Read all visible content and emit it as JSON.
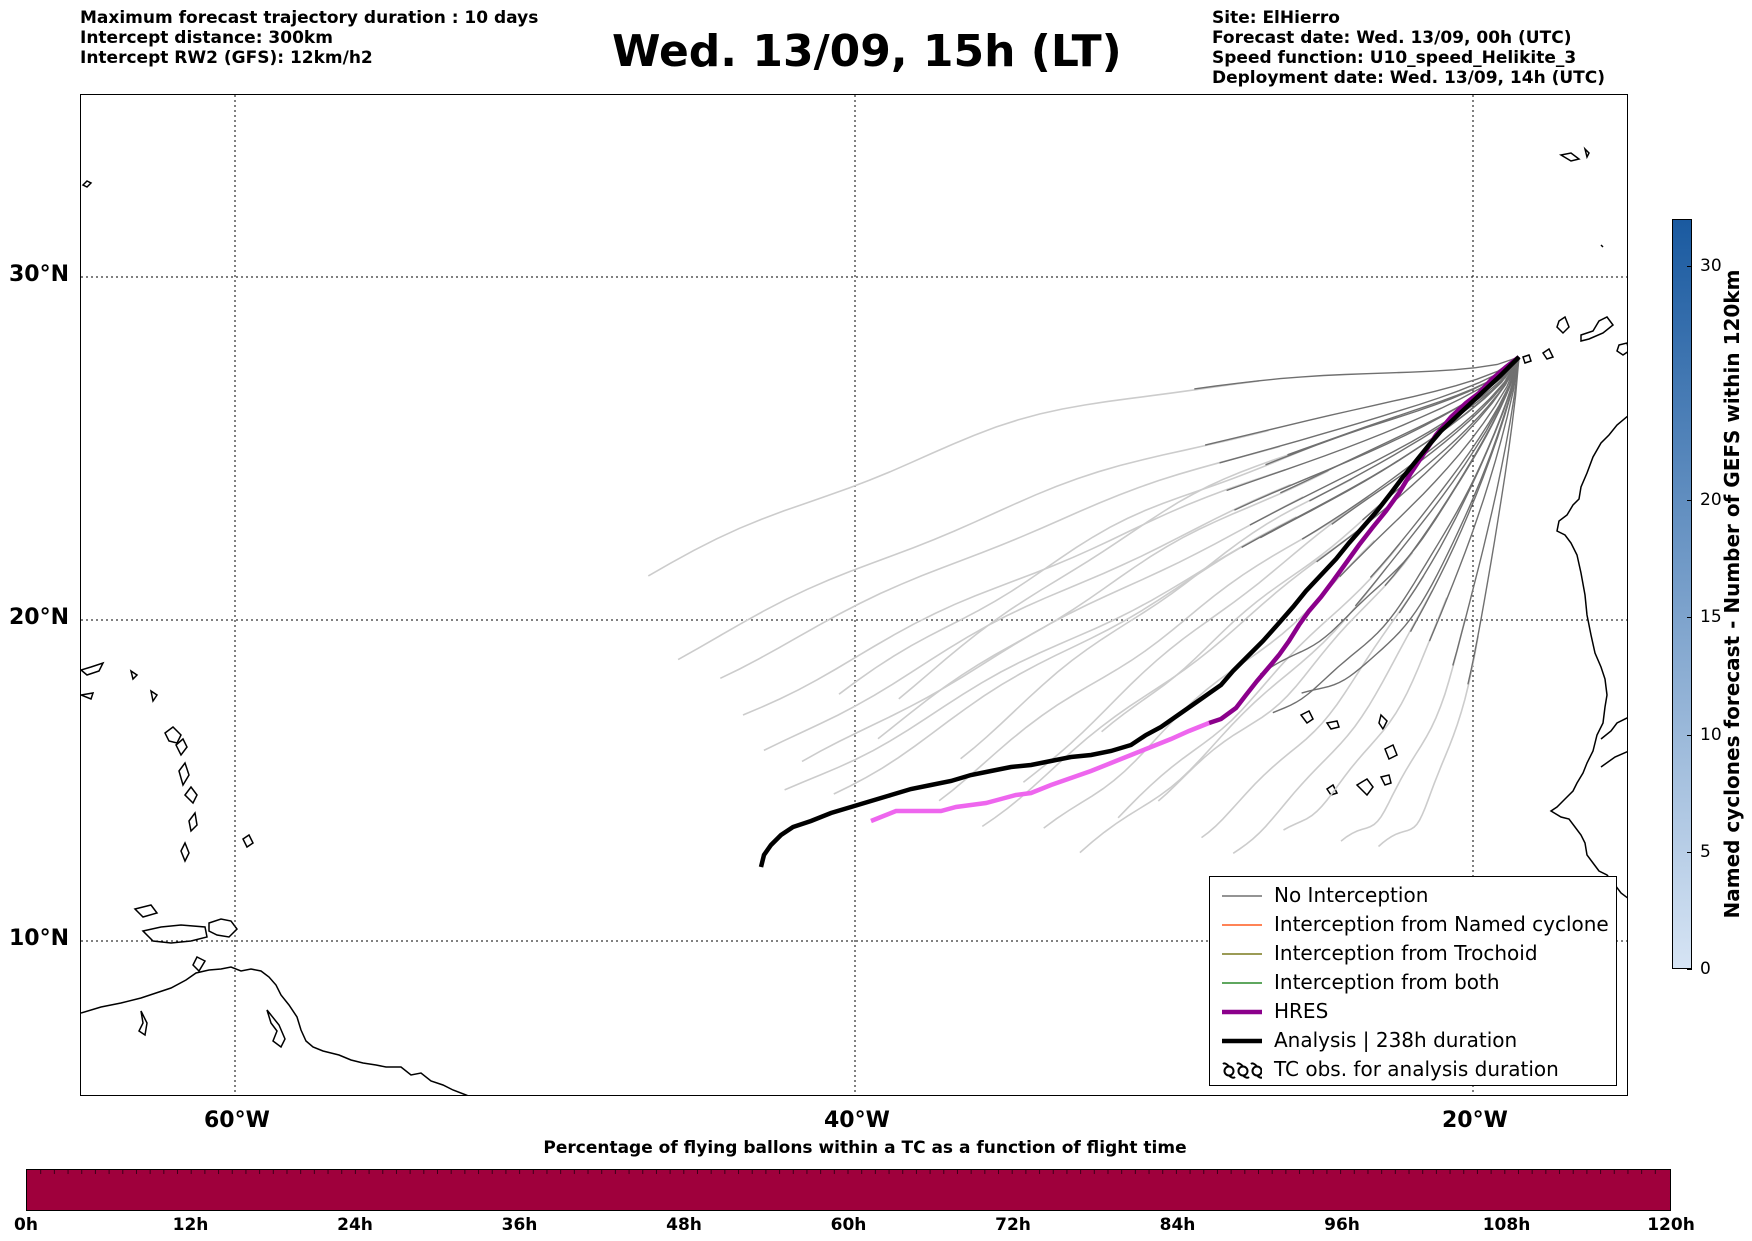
{
  "header": {
    "left_lines": [
      "Maximum forecast trajectory duration : 10 days",
      "Intercept distance: 300km",
      "Intercept RW2 (GFS):  12km/h2"
    ],
    "title": "Wed. 13/09, 15h (LT)",
    "right_lines": [
      "Site: ElHierro",
      "Forecast date: Wed. 13/09, 00h (UTC)",
      "Speed function: U10_speed_Helikite_3",
      "Deployment date: Wed. 13/09, 14h (UTC)"
    ]
  },
  "map": {
    "lat_labels": [
      "30°N",
      "20°N",
      "10°N"
    ],
    "lon_labels": [
      "60°W",
      "40°W",
      "20°W"
    ],
    "gridline_style": "dotted",
    "colors": {
      "ensemble_near": "#707070",
      "ensemble_far": "#cccccc",
      "hres": "#8b008b",
      "hres_far": "#ee66ee",
      "analysis": "#000000",
      "coast": "#000000"
    }
  },
  "legend": {
    "items": [
      {
        "label": "No Interception",
        "color": "#707070",
        "style": "thin"
      },
      {
        "label": "Interception from Named cyclone",
        "color": "#ff5a1e",
        "style": "thin"
      },
      {
        "label": "Interception from Trochoid",
        "color": "#7a7a1e",
        "style": "thin"
      },
      {
        "label": "Interception from both",
        "color": "#2a8a2a",
        "style": "thin"
      },
      {
        "label": "HRES",
        "color": "#8b008b",
        "style": "thick"
      },
      {
        "label": "Analysis | 238h duration",
        "color": "#000000",
        "style": "thick"
      },
      {
        "label": "TC obs. for analysis duration",
        "color": "#000000",
        "style": "symbol"
      }
    ]
  },
  "colorbar": {
    "title": "Named cyclones forecast - Number of GEFS within 120km",
    "ticks": [
      "0",
      "5",
      "10",
      "15",
      "20",
      "30"
    ],
    "colors": [
      "#d6e4f4",
      "#1a5aa0"
    ]
  },
  "timebar": {
    "title": "Percentage of flying ballons within a TC as a function of flight time",
    "labels": [
      "0h",
      "12h",
      "24h",
      "36h",
      "48h",
      "60h",
      "72h",
      "84h",
      "96h",
      "108h",
      "120h"
    ],
    "fill_color": "#9f003c",
    "fraction_in_tc": 0
  }
}
